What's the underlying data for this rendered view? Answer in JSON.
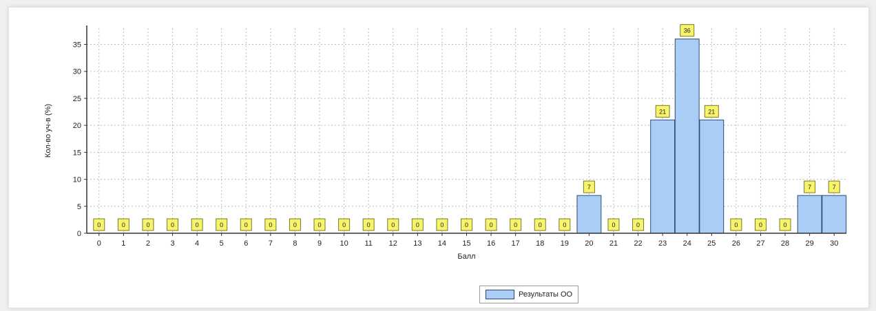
{
  "chart_data": {
    "type": "bar",
    "title": "",
    "xlabel": "Балл",
    "ylabel": "Кол-во уч-в (%)",
    "categories": [
      "0",
      "1",
      "2",
      "3",
      "4",
      "5",
      "6",
      "7",
      "8",
      "9",
      "10",
      "11",
      "12",
      "13",
      "14",
      "15",
      "16",
      "17",
      "18",
      "19",
      "20",
      "21",
      "22",
      "23",
      "24",
      "25",
      "26",
      "27",
      "28",
      "29",
      "30"
    ],
    "series": [
      {
        "name": "Результаты ОО",
        "values": [
          0,
          0,
          0,
          0,
          0,
          0,
          0,
          0,
          0,
          0,
          0,
          0,
          0,
          0,
          0,
          0,
          0,
          0,
          0,
          0,
          7,
          0,
          0,
          21,
          36,
          21,
          0,
          0,
          0,
          7,
          7
        ],
        "data_labels": [
          "0",
          "0",
          "0",
          "0",
          "0",
          "0",
          "0",
          "0",
          "0",
          "0",
          "0",
          "0",
          "0",
          "0",
          "0",
          "0",
          "0",
          "0",
          "0",
          "0",
          "7",
          "0",
          "0",
          "21",
          "36",
          "21",
          "0",
          "0",
          "0",
          "7",
          "7"
        ]
      }
    ],
    "y_ticks": [
      0,
      5,
      10,
      15,
      20,
      25,
      30,
      35
    ],
    "ylim": [
      0,
      38
    ],
    "grid": true,
    "legend_position": "bottom-center",
    "colors": {
      "bar_fill": "#a9cdf5",
      "bar_stroke": "#2b4a6f",
      "label_fill": "#f7f36a",
      "label_stroke": "#7a7a2a",
      "grid": "#bdbdbd",
      "axis": "#333333"
    }
  }
}
